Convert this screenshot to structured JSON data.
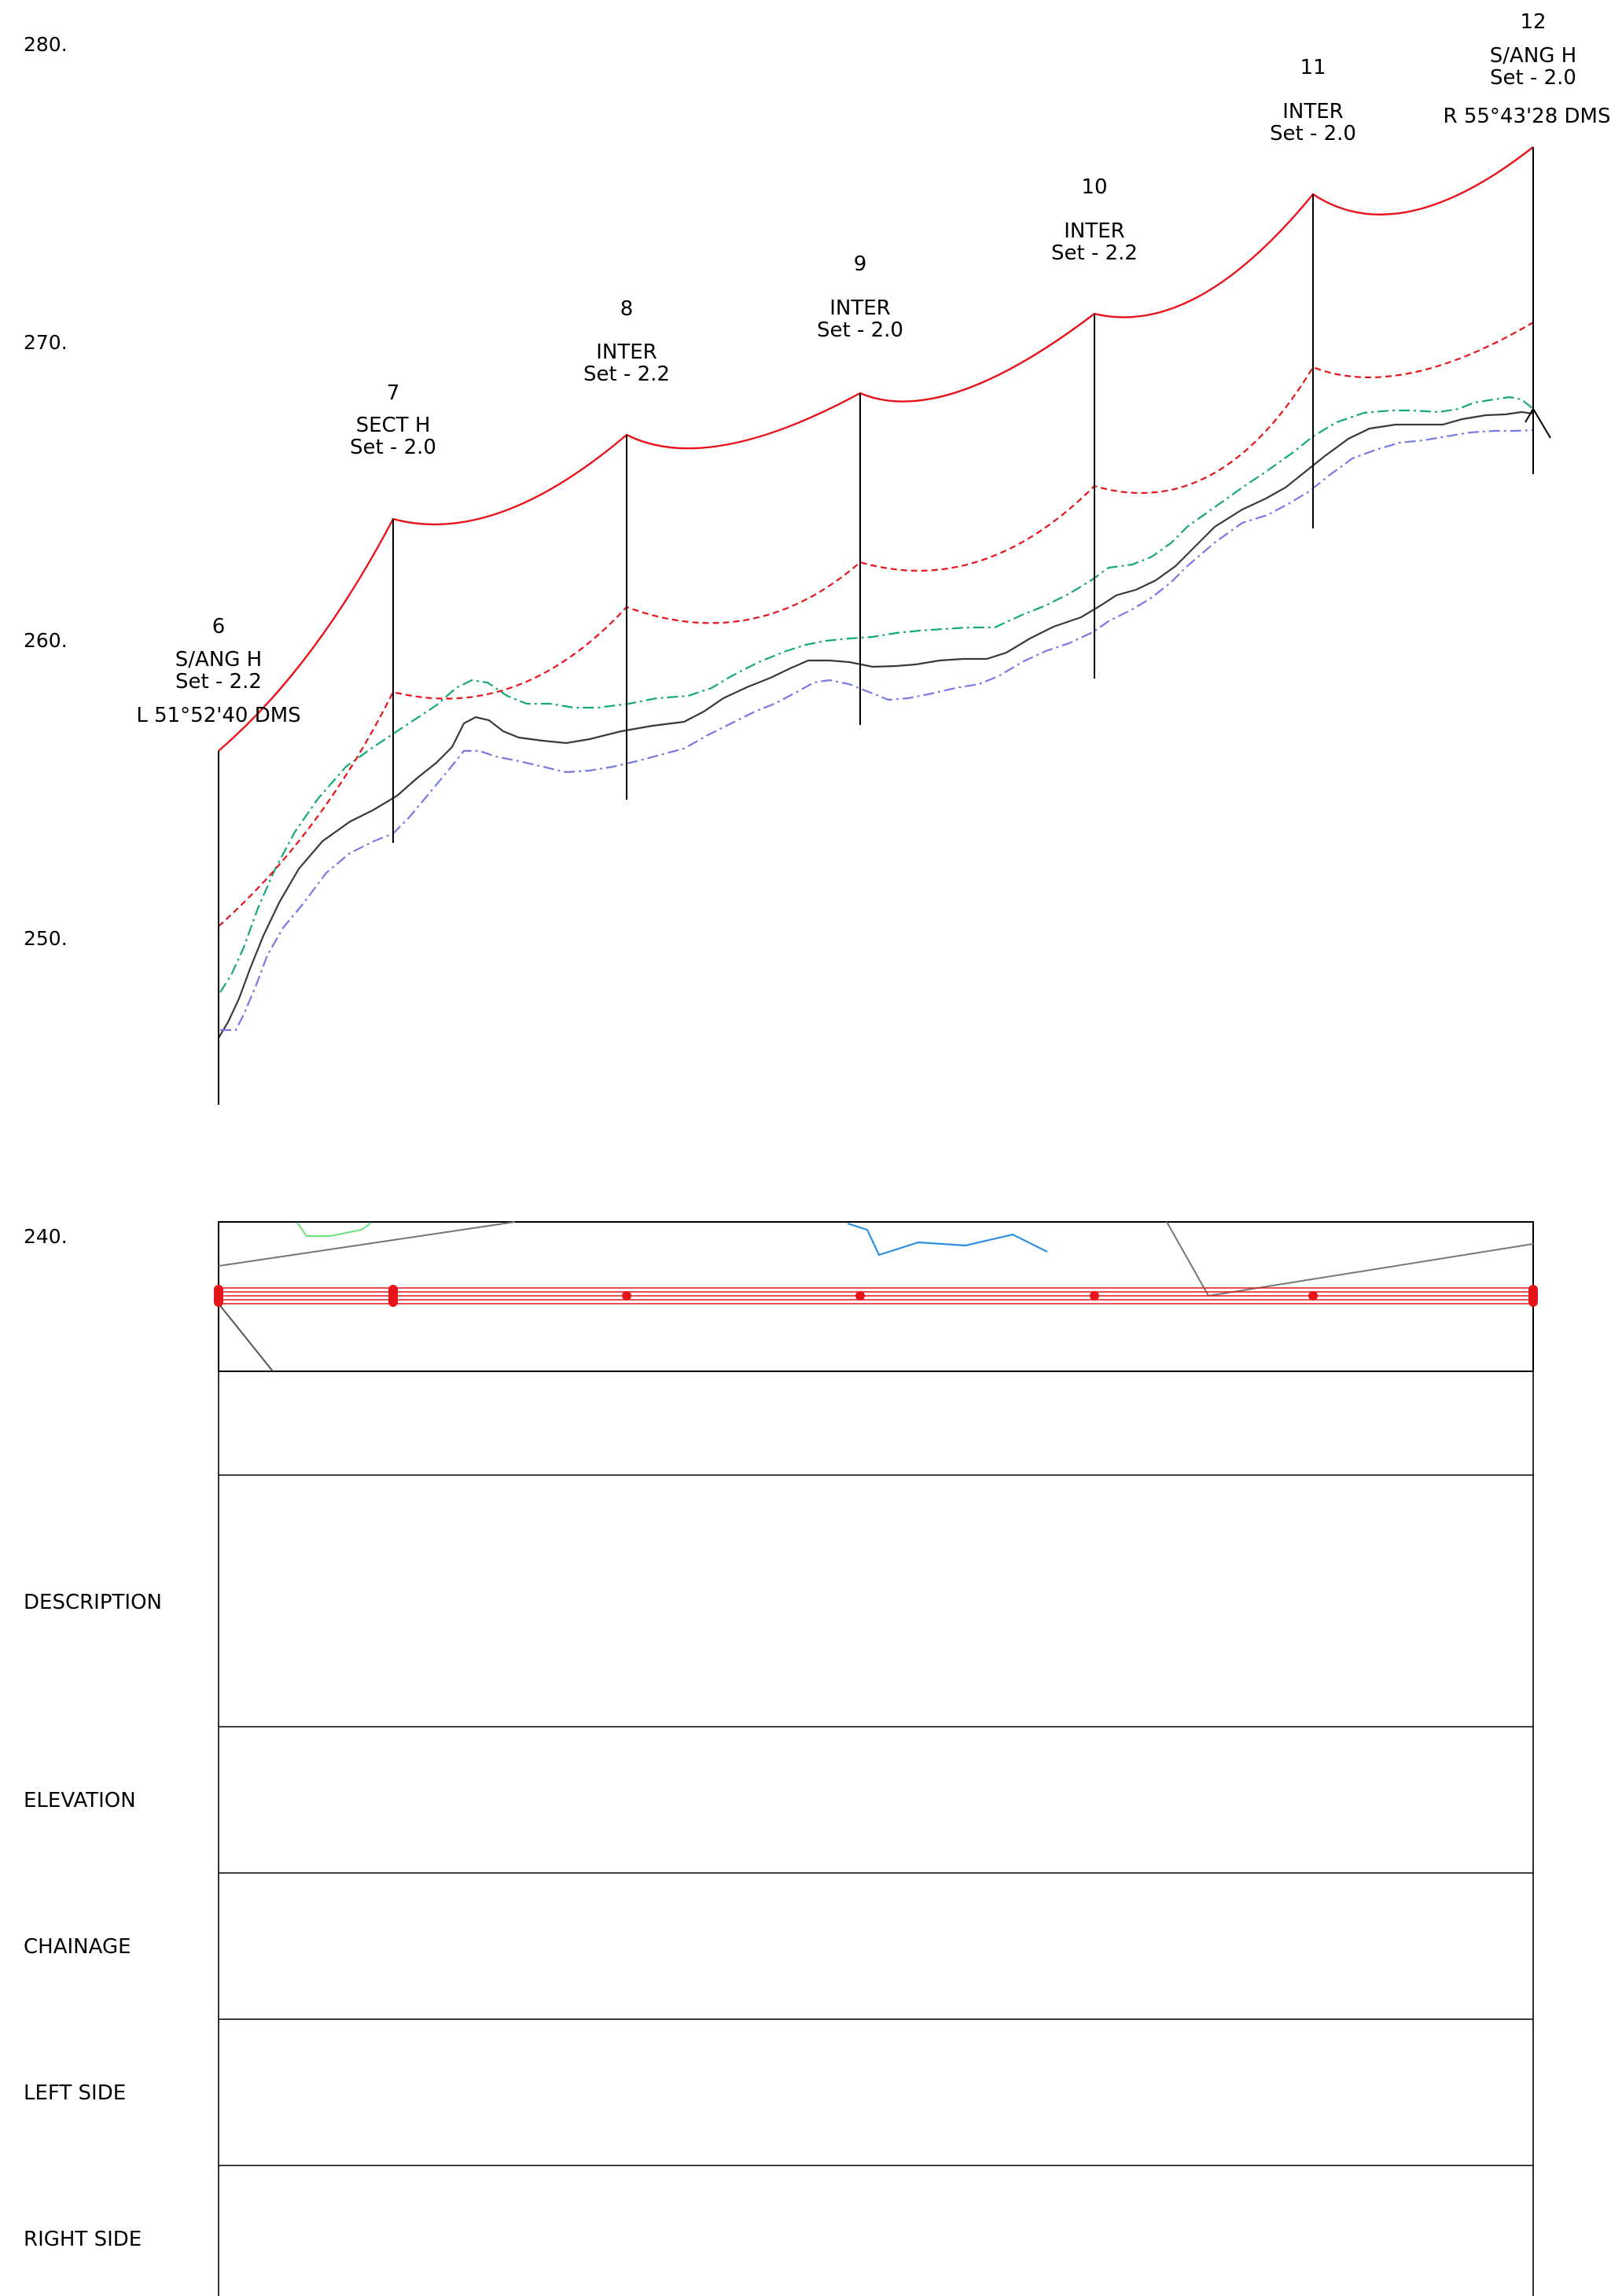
{
  "elevation_axis": {
    "labels": [
      "280.",
      "270.",
      "260.",
      "250.",
      "240."
    ],
    "values": [
      280,
      270,
      260,
      250,
      240
    ]
  },
  "poles": [
    {
      "number": "6",
      "type": "S/ANG H",
      "set": "Set - 2.2",
      "angle": "L 51°52'40 DMS"
    },
    {
      "number": "7",
      "type": "SECT H",
      "set": "Set - 2.0",
      "angle": ""
    },
    {
      "number": "8",
      "type": "INTER",
      "set": "Set - 2.2",
      "angle": ""
    },
    {
      "number": "9",
      "type": "INTER",
      "set": "Set - 2.0",
      "angle": ""
    },
    {
      "number": "10",
      "type": "INTER",
      "set": "Set - 2.2",
      "angle": ""
    },
    {
      "number": "11",
      "type": "INTER",
      "set": "Set - 2.0",
      "angle": ""
    },
    {
      "number": "12",
      "type": "S/ANG H",
      "set": "Set - 2.0",
      "angle": "R 55°43'28 DMS"
    }
  ],
  "table_rows": [
    "DESCRIPTION",
    "ELEVATION",
    "CHAINAGE",
    "LEFT SIDE",
    "RIGHT SIDE"
  ],
  "colors": {
    "conductor": "#e8141b",
    "ground": "#3a3a3a",
    "ground_upper": "#17a877",
    "ground_lower": "#7a78e6",
    "pole": "#000000",
    "plan_stream": "#2e8fe0",
    "plan_green": "#6ee07a"
  }
}
